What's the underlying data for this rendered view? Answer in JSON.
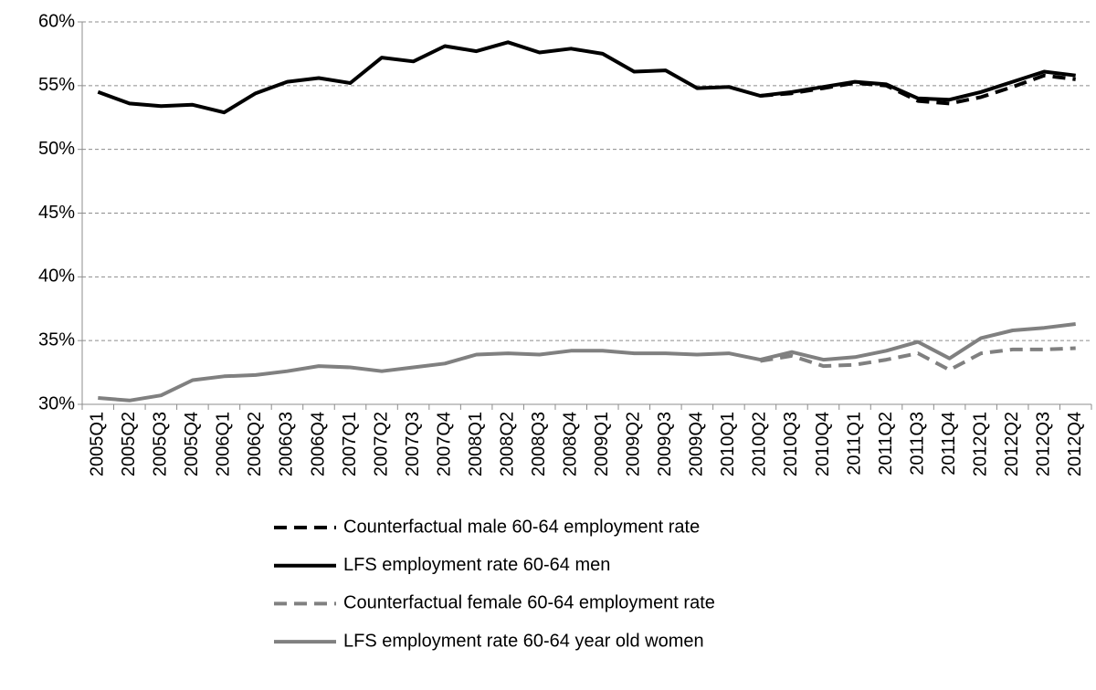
{
  "chart_data": {
    "type": "line",
    "categories": [
      "2005Q1",
      "2005Q2",
      "2005Q3",
      "2005Q4",
      "2006Q1",
      "2006Q2",
      "2006Q3",
      "2006Q4",
      "2007Q1",
      "2007Q2",
      "2007Q3",
      "2007Q4",
      "2008Q1",
      "2008Q2",
      "2008Q3",
      "2008Q4",
      "2009Q1",
      "2009Q2",
      "2009Q3",
      "2009Q4",
      "2010Q1",
      "2010Q2",
      "2010Q3",
      "2010Q4",
      "2011Q1",
      "2011Q2",
      "2011Q3",
      "2011Q4",
      "2012Q1",
      "2012Q2",
      "2012Q3",
      "2012Q4"
    ],
    "series": [
      {
        "name": "Counterfactual male 60-64 employment rate",
        "color": "#000000",
        "dashed": true,
        "values": [
          null,
          null,
          null,
          null,
          null,
          null,
          null,
          null,
          null,
          null,
          null,
          null,
          null,
          null,
          null,
          null,
          null,
          null,
          null,
          null,
          null,
          54.2,
          54.4,
          54.8,
          55.2,
          55.0,
          53.8,
          53.6,
          54.1,
          54.9,
          55.8,
          55.5
        ]
      },
      {
        "name": "LFS employment rate 60-64 men",
        "color": "#000000",
        "dashed": false,
        "values": [
          54.5,
          53.6,
          53.4,
          53.5,
          52.9,
          54.4,
          55.3,
          55.6,
          55.2,
          57.2,
          56.9,
          58.1,
          57.7,
          58.4,
          57.6,
          57.9,
          57.5,
          56.1,
          56.2,
          54.8,
          54.9,
          54.2,
          54.5,
          54.9,
          55.3,
          55.1,
          54.0,
          53.9,
          54.5,
          55.3,
          56.1,
          55.8
        ]
      },
      {
        "name": "Counterfactual female 60-64 employment rate",
        "color": "#808080",
        "dashed": true,
        "values": [
          null,
          null,
          null,
          null,
          null,
          null,
          null,
          null,
          null,
          null,
          null,
          null,
          null,
          null,
          null,
          null,
          null,
          null,
          null,
          null,
          null,
          33.4,
          33.8,
          33.0,
          33.1,
          33.5,
          34.0,
          32.7,
          34.0,
          34.3,
          34.3,
          34.4
        ]
      },
      {
        "name": "LFS employment rate 60-64 year old women",
        "color": "#808080",
        "dashed": false,
        "values": [
          30.5,
          30.3,
          30.7,
          31.9,
          32.2,
          32.3,
          32.6,
          33.0,
          32.9,
          32.6,
          32.9,
          33.2,
          33.9,
          34.0,
          33.9,
          34.2,
          34.2,
          34.0,
          34.0,
          33.9,
          34.0,
          33.5,
          34.1,
          33.5,
          33.7,
          34.2,
          34.9,
          33.6,
          35.2,
          35.8,
          36.0,
          36.3
        ]
      }
    ],
    "ylim": [
      30,
      60
    ],
    "yticks": [
      {
        "value": 30,
        "label": "30%"
      },
      {
        "value": 35,
        "label": "35%"
      },
      {
        "value": 40,
        "label": "40%"
      },
      {
        "value": 45,
        "label": "45%"
      },
      {
        "value": 50,
        "label": "50%"
      },
      {
        "value": 55,
        "label": "55%"
      },
      {
        "value": 60,
        "label": "60%"
      }
    ],
    "grid": true
  }
}
